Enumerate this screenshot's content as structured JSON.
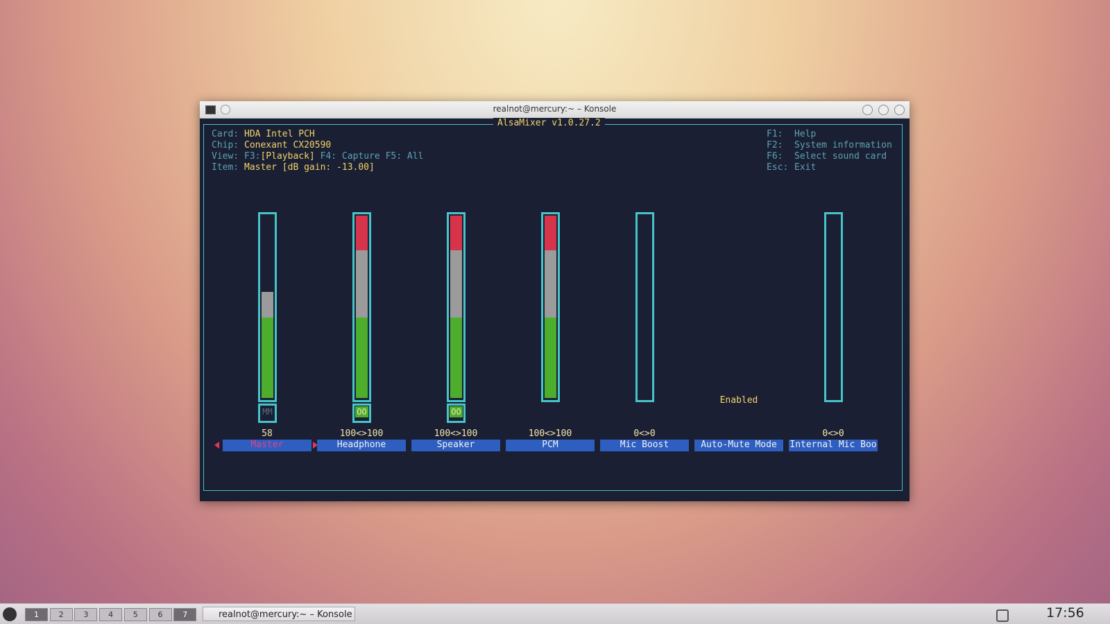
{
  "window": {
    "title": "realnot@mercury:~ – Konsole"
  },
  "mixer": {
    "title": "AlsaMixer v1.0.27.2",
    "info": [
      {
        "label": "Card:",
        "value": "HDA Intel PCH"
      },
      {
        "label": "Chip:",
        "value": "Conexant CX20590"
      },
      {
        "label": "View:",
        "parts": [
          "F3:",
          "[Playback]",
          "F4: Capture",
          "F5: All"
        ]
      },
      {
        "label": "Item:",
        "value": "Master [dB gain: -13.00]"
      }
    ],
    "keys": [
      {
        "key": "F1:",
        "action": "Help"
      },
      {
        "key": "F2:",
        "action": "System information"
      },
      {
        "key": "F6:",
        "action": "Select sound card"
      },
      {
        "key": "Esc:",
        "action": "Exit"
      }
    ],
    "controls": [
      {
        "name": "Master",
        "level": 58,
        "mute": "MM",
        "selected": true
      },
      {
        "name": "Headphone",
        "level": 100,
        "value_label": "100<>100",
        "mute": "OO"
      },
      {
        "name": "Speaker",
        "level": 100,
        "value_label": "100<>100",
        "mute": "OO"
      },
      {
        "name": "PCM",
        "level": 100,
        "value_label": "100<>100"
      },
      {
        "name": "Mic Boost",
        "level": 0,
        "value_label": "0<>0"
      },
      {
        "name": "Auto-Mute Mode",
        "status": "Enabled"
      },
      {
        "name": "Internal Mic Boo",
        "level": 0,
        "value_label": "0<>0"
      }
    ]
  },
  "taskbar": {
    "desktops": [
      "1",
      "2",
      "3",
      "4",
      "5",
      "6",
      "7"
    ],
    "task": "realnot@mercury:~ – Konsole",
    "clock": "17:56"
  }
}
